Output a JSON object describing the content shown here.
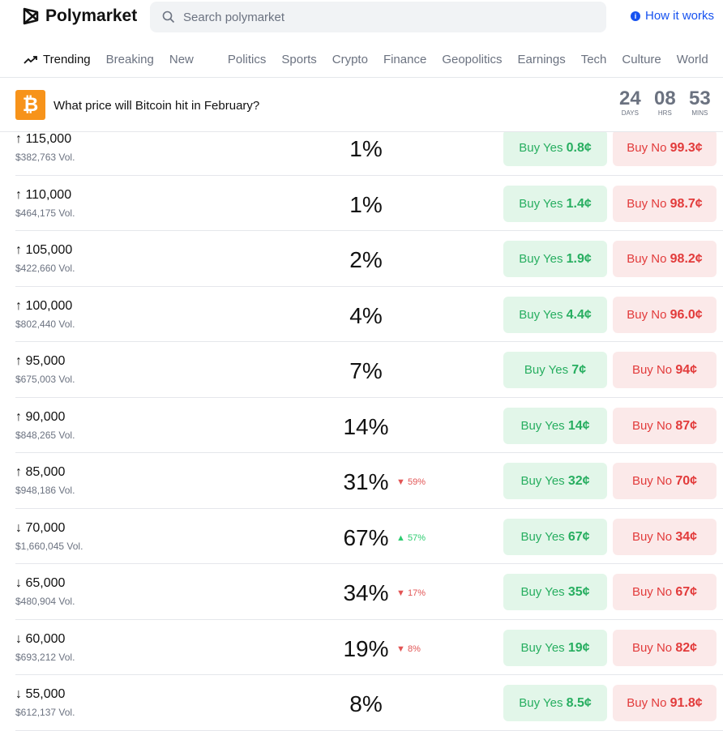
{
  "header": {
    "brand": "Polymarket",
    "search_placeholder": "Search polymarket",
    "how": "How it works"
  },
  "nav": {
    "items": [
      "Trending",
      "Breaking",
      "New",
      "Politics",
      "Sports",
      "Crypto",
      "Finance",
      "Geopolitics",
      "Earnings",
      "Tech",
      "Culture",
      "World"
    ]
  },
  "market": {
    "title": "What price will Bitcoin hit in February?",
    "countdown": [
      {
        "value": "24",
        "unit": "DAYS"
      },
      {
        "value": "08",
        "unit": "HRS"
      },
      {
        "value": "53",
        "unit": "MINS"
      }
    ]
  },
  "colors": {
    "yes": "#27ae60",
    "no": "#e23b3b",
    "btc": "#f7931a",
    "link": "#1652f0"
  },
  "rows": [
    {
      "strike": "↑ 115,000",
      "vol": "$382,763 Vol.",
      "pct": "1%",
      "change": "",
      "dir": "",
      "yes": "0.8¢",
      "no": "99.3¢"
    },
    {
      "strike": "↑ 110,000",
      "vol": "$464,175 Vol.",
      "pct": "1%",
      "change": "",
      "dir": "",
      "yes": "1.4¢",
      "no": "98.7¢"
    },
    {
      "strike": "↑ 105,000",
      "vol": "$422,660 Vol.",
      "pct": "2%",
      "change": "",
      "dir": "",
      "yes": "1.9¢",
      "no": "98.2¢"
    },
    {
      "strike": "↑ 100,000",
      "vol": "$802,440 Vol.",
      "pct": "4%",
      "change": "",
      "dir": "",
      "yes": "4.4¢",
      "no": "96.0¢"
    },
    {
      "strike": "↑ 95,000",
      "vol": "$675,003 Vol.",
      "pct": "7%",
      "change": "",
      "dir": "",
      "yes": "7¢",
      "no": "94¢"
    },
    {
      "strike": "↑ 90,000",
      "vol": "$848,265 Vol.",
      "pct": "14%",
      "change": "",
      "dir": "",
      "yes": "14¢",
      "no": "87¢"
    },
    {
      "strike": "↑ 85,000",
      "vol": "$948,186 Vol.",
      "pct": "31%",
      "change": "59%",
      "dir": "down",
      "yes": "32¢",
      "no": "70¢"
    },
    {
      "strike": "↓ 70,000",
      "vol": "$1,660,045 Vol.",
      "pct": "67%",
      "change": "57%",
      "dir": "up",
      "yes": "67¢",
      "no": "34¢"
    },
    {
      "strike": "↓ 65,000",
      "vol": "$480,904 Vol.",
      "pct": "34%",
      "change": "17%",
      "dir": "down",
      "yes": "35¢",
      "no": "67¢"
    },
    {
      "strike": "↓ 60,000",
      "vol": "$693,212 Vol.",
      "pct": "19%",
      "change": "8%",
      "dir": "down",
      "yes": "19¢",
      "no": "82¢"
    },
    {
      "strike": "↓ 55,000",
      "vol": "$612,137 Vol.",
      "pct": "8%",
      "change": "",
      "dir": "",
      "yes": "8.5¢",
      "no": "91.8¢"
    }
  ],
  "labels": {
    "buy_yes": "Buy Yes",
    "buy_no": "Buy No"
  }
}
